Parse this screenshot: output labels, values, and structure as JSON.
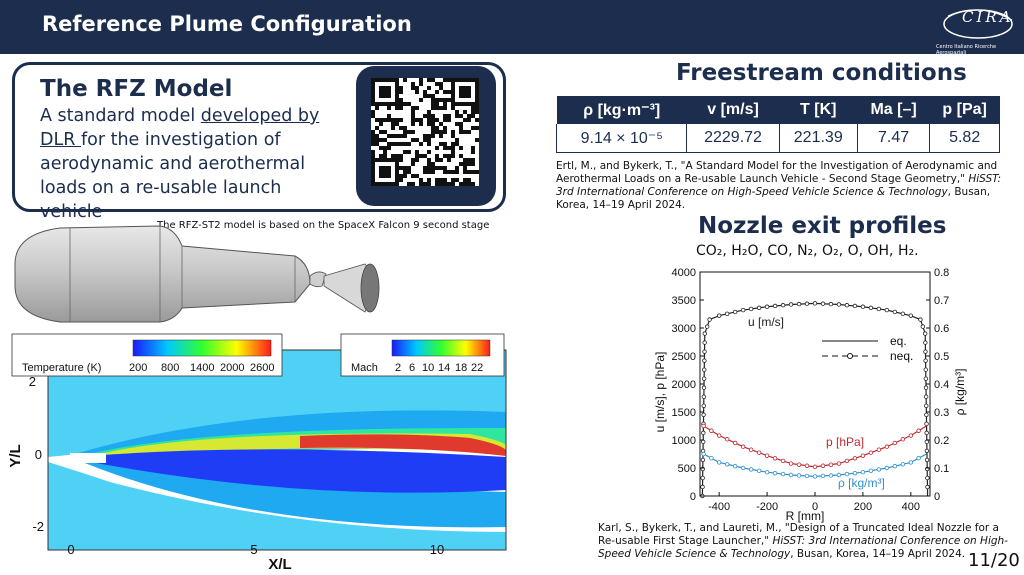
{
  "header": {
    "title": "Reference Plume Configuration"
  },
  "logo": {
    "text": "CIRA",
    "subtitle": "Centro Italiano Ricerche Aerospaziali"
  },
  "rfz": {
    "title": "The RFZ Model",
    "desc_pre": "A standard model ",
    "desc_link": "developed by DLR ",
    "desc_post": "for the investigation of aerodynamic and aerothermal loads on a re-usable launch vehicle"
  },
  "vehicle_caption": "The RFZ-ST2 model is based on the SpaceX Falcon 9 second stage",
  "freestream": {
    "title": "Freestream conditions",
    "headers": [
      "ρ [kg·m⁻³]",
      "v [m/s]",
      "T [K]",
      "Ma [–]",
      "p [Pa]"
    ],
    "values": [
      "9.14 × 10⁻⁵",
      "2229.72",
      "221.39",
      "7.47",
      "5.82"
    ]
  },
  "ref1": {
    "pre": "Ertl, M., and Bykerk, T., \"A Standard Model for the Investigation of Aerodynamic and Aerothermal Loads on a Re-usable Launch Vehicle - Second Stage Geometry,\" ",
    "venue": "HiSST: 3rd International Conference on High-Speed Vehicle Science & Technology",
    "post": ", Busan, Korea, 14–19 April 2024."
  },
  "nozzle": {
    "title": "Nozzle exit profiles",
    "species": "CO₂, H₂O, CO, N₂, O₂, O, OH, H₂."
  },
  "ref2": {
    "pre": "Karl, S., Bykerk, T., and Laureti, M., \"Design of a Truncated Ideal Nozzle for a Re-usable First Stage Launcher,\" ",
    "venue": "HiSST: 3rd International Conference on High-Speed Vehicle Science & Technology",
    "post": ", Busan, Korea, 14–19 April 2024."
  },
  "page_number": "11/20",
  "contour": {
    "temp_legend_title": "Temperature (K)",
    "temp_ticks": [
      "200",
      "800",
      "1400",
      "2000",
      "2600"
    ],
    "mach_legend_title": "Mach",
    "mach_ticks": [
      "2",
      "6",
      "10",
      "14",
      "18",
      "22"
    ],
    "ylabel": "Y/L",
    "xlabel": "X/L",
    "yticks": [
      "2",
      "0",
      "-2"
    ],
    "xticks": [
      "0",
      "5",
      "10"
    ]
  },
  "chart_data": {
    "type": "line",
    "xlabel": "R [mm]",
    "ylabel_left": "u [m/s], p [hPa]",
    "ylabel_right": "ρ [kg/m³]",
    "xlim": [
      -480,
      480
    ],
    "ylim_left": [
      0,
      4000
    ],
    "ylim_right": [
      0,
      0.8
    ],
    "xticks": [
      -400,
      -200,
      0,
      200,
      400
    ],
    "yticks_left": [
      0,
      500,
      1000,
      1500,
      2000,
      2500,
      3000,
      3500,
      4000
    ],
    "yticks_right": [
      0,
      0.1,
      0.2,
      0.3,
      0.4,
      0.5,
      0.6,
      0.7,
      0.8
    ],
    "legend": [
      "eq.",
      "neq."
    ],
    "series": [
      {
        "name": "u [m/s]",
        "axis": "left",
        "color": "#222222",
        "x": [
          -470,
          -460,
          -440,
          -400,
          -300,
          -200,
          -100,
          0,
          100,
          200,
          300,
          400,
          440,
          460,
          470
        ],
        "values": [
          0,
          2900,
          3150,
          3220,
          3320,
          3380,
          3420,
          3440,
          3420,
          3380,
          3320,
          3220,
          3150,
          2900,
          0
        ]
      },
      {
        "name": "p [hPa]",
        "axis": "left",
        "color": "#c0282d",
        "x": [
          -465,
          -400,
          -300,
          -200,
          -100,
          0,
          100,
          200,
          300,
          400,
          465
        ],
        "values": [
          1250,
          1080,
          880,
          720,
          580,
          520,
          580,
          720,
          880,
          1080,
          1250
        ]
      },
      {
        "name": "ρ [kg/m³]",
        "axis": "right",
        "color": "#2f8fd0",
        "x": [
          -465,
          -400,
          -300,
          -200,
          -100,
          0,
          100,
          200,
          300,
          400,
          465
        ],
        "values": [
          0.15,
          0.12,
          0.1,
          0.085,
          0.075,
          0.07,
          0.075,
          0.085,
          0.1,
          0.12,
          0.15
        ]
      }
    ]
  },
  "colors": {
    "navy": "#1c2d4e",
    "p_series": "#c0282d",
    "rho_series": "#2f8fd0"
  }
}
